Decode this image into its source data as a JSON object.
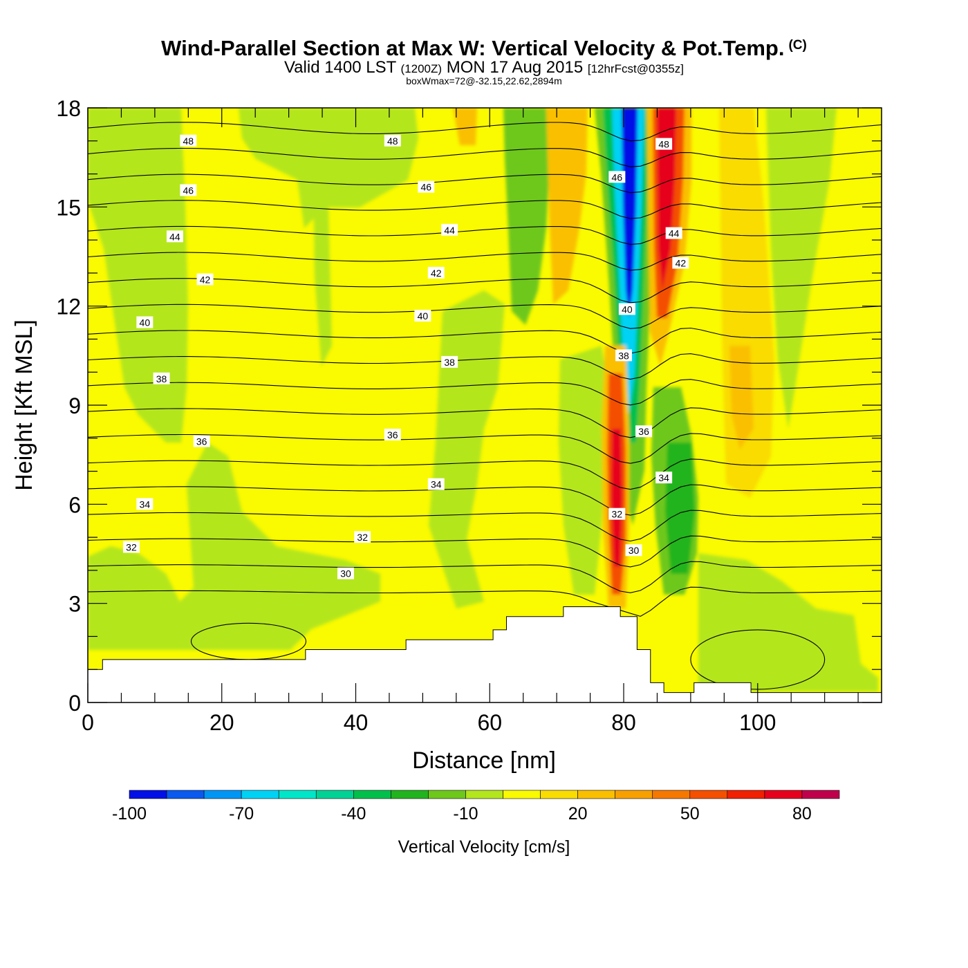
{
  "header": {
    "title": "Wind-Parallel Section at Max W: Vertical Velocity & Pot.Temp.",
    "title_mark": "(C)",
    "valid_prefix": "Valid 1400 LST",
    "valid_utc": "(1200Z)",
    "valid_date": "MON 17 Aug 2015",
    "forecast_info": "[12hrFcst@0355z]",
    "box_info": "boxWmax=72@-32.15,22.62,2894m"
  },
  "chart_data": {
    "type": "heatmap",
    "xlabel": "Distance [nm]",
    "ylabel": "Height [Kft MSL]",
    "xlim": [
      0,
      118.5
    ],
    "ylim": [
      0,
      18
    ],
    "x_ticks": [
      0,
      20,
      40,
      60,
      80,
      100
    ],
    "y_ticks": [
      0,
      3,
      6,
      9,
      12,
      15,
      18
    ],
    "colorbar": {
      "label": "Vertical Velocity [cm/s]",
      "boundaries": [
        -100,
        -90,
        -80,
        -70,
        -60,
        -50,
        -40,
        -30,
        -20,
        -10,
        0,
        10,
        20,
        30,
        40,
        50,
        60,
        70,
        80,
        90
      ],
      "tick_labels": [
        "-100",
        "-70",
        "-40",
        "-10",
        "20",
        "50",
        "80"
      ],
      "colors": [
        "#0010e6",
        "#0a5af0",
        "#0096f5",
        "#00d2f5",
        "#00e6c8",
        "#00d296",
        "#00c04c",
        "#22b41e",
        "#6ec81c",
        "#b4e61e",
        "#fafa00",
        "#fadc00",
        "#fac000",
        "#f8a000",
        "#f67800",
        "#f45000",
        "#f02000",
        "#e6001e",
        "#c0004a"
      ]
    },
    "vertical_velocity_features": [
      {
        "x_range": [
          80,
          83
        ],
        "y_range": [
          6.5,
          18
        ],
        "value": -95
      },
      {
        "x_range": [
          79,
          81
        ],
        "y_range": [
          3.5,
          11
        ],
        "value": 70
      },
      {
        "x_range": [
          85,
          88
        ],
        "y_range": [
          10,
          18
        ],
        "value": 80
      },
      {
        "x_range": [
          87,
          91
        ],
        "y_range": [
          3,
          8
        ],
        "value": -35
      },
      {
        "x_range": [
          64,
          68
        ],
        "y_range": [
          11,
          18
        ],
        "value": -25
      },
      {
        "x_range": [
          70,
          74
        ],
        "y_range": [
          13,
          18
        ],
        "value": 30
      },
      {
        "x_range": [
          97,
          99
        ],
        "y_range": [
          6,
          10
        ],
        "value": 25
      }
    ],
    "terrain_height_kft": [
      {
        "x": 0,
        "h": 1.0
      },
      {
        "x": 2.2,
        "h": 1.3
      },
      {
        "x": 32.5,
        "h": 1.6
      },
      {
        "x": 47.5,
        "h": 1.9
      },
      {
        "x": 60.5,
        "h": 2.2
      },
      {
        "x": 62.5,
        "h": 2.6
      },
      {
        "x": 71,
        "h": 2.9
      },
      {
        "x": 79.5,
        "h": 2.6
      },
      {
        "x": 82,
        "h": 1.6
      },
      {
        "x": 84,
        "h": 0.6
      },
      {
        "x": 86,
        "h": 0.3
      },
      {
        "x": 90.5,
        "h": 0.6
      },
      {
        "x": 99,
        "h": 0.3
      },
      {
        "x": 118.5,
        "h": 0.3
      }
    ],
    "isentropes": [
      {
        "label": "30",
        "x": 38.5,
        "y": 3.9
      },
      {
        "label": "30",
        "x": 81.5,
        "y": 4.6
      },
      {
        "label": "32",
        "x": 6.5,
        "y": 4.7
      },
      {
        "label": "32",
        "x": 41,
        "y": 5.0
      },
      {
        "label": "32",
        "x": 79,
        "y": 5.7
      },
      {
        "label": "34",
        "x": 8.5,
        "y": 6.0
      },
      {
        "label": "34",
        "x": 52,
        "y": 6.6
      },
      {
        "label": "34",
        "x": 86,
        "y": 6.8
      },
      {
        "label": "36",
        "x": 17,
        "y": 7.9
      },
      {
        "label": "36",
        "x": 45.5,
        "y": 8.1
      },
      {
        "label": "36",
        "x": 83,
        "y": 8.2
      },
      {
        "label": "38",
        "x": 11,
        "y": 9.8
      },
      {
        "label": "38",
        "x": 54,
        "y": 10.3
      },
      {
        "label": "38",
        "x": 80,
        "y": 10.5
      },
      {
        "label": "40",
        "x": 8.5,
        "y": 11.5
      },
      {
        "label": "40",
        "x": 50,
        "y": 11.7
      },
      {
        "label": "40",
        "x": 80.5,
        "y": 11.9
      },
      {
        "label": "42",
        "x": 17.5,
        "y": 12.8
      },
      {
        "label": "42",
        "x": 52,
        "y": 13.0
      },
      {
        "label": "42",
        "x": 88.5,
        "y": 13.3
      },
      {
        "label": "44",
        "x": 13,
        "y": 14.1
      },
      {
        "label": "44",
        "x": 54,
        "y": 14.3
      },
      {
        "label": "44",
        "x": 87.5,
        "y": 14.2
      },
      {
        "label": "46",
        "x": 15,
        "y": 15.5
      },
      {
        "label": "46",
        "x": 50.5,
        "y": 15.6
      },
      {
        "label": "46",
        "x": 79,
        "y": 15.9
      },
      {
        "label": "48",
        "x": 15,
        "y": 17.0
      },
      {
        "label": "48",
        "x": 45.5,
        "y": 17.0
      },
      {
        "label": "48",
        "x": 86,
        "y": 16.9
      }
    ]
  }
}
